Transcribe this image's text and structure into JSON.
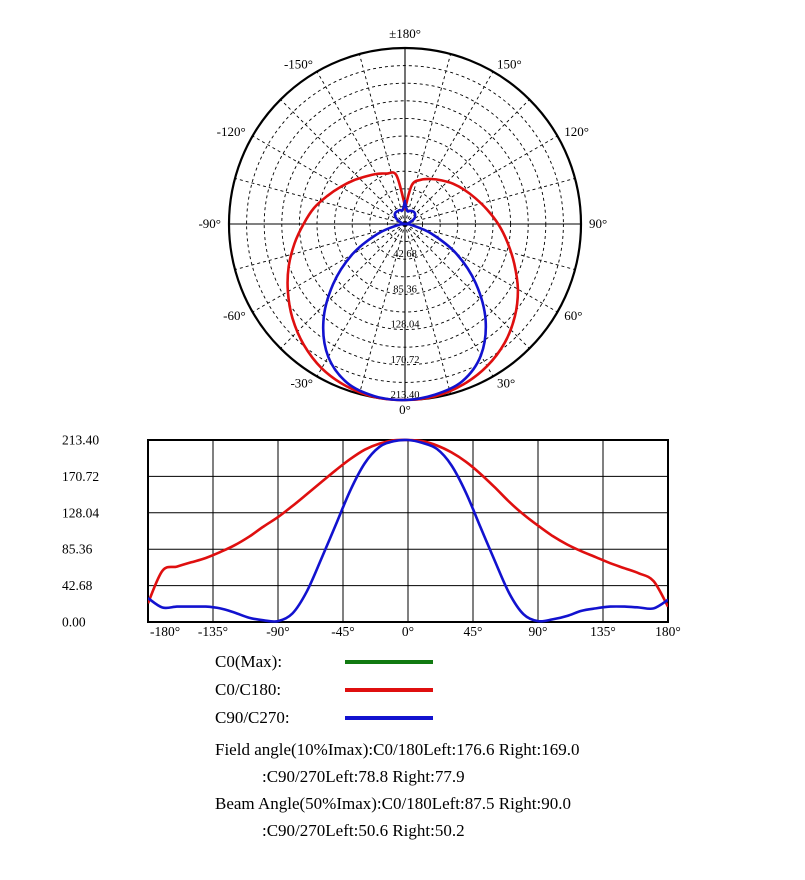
{
  "page": {
    "background": "#ffffff"
  },
  "chart_data": [
    {
      "type": "polar",
      "zero_angle_position": "bottom",
      "rmax": 213.4,
      "grid_rings": 10,
      "radial_grid_step_deg": 15,
      "angle_ticks": [
        {
          "deg": 180,
          "label": "±180°"
        },
        {
          "deg": -150,
          "label": "-150°"
        },
        {
          "deg": 150,
          "label": "150°"
        },
        {
          "deg": -120,
          "label": "-120°"
        },
        {
          "deg": 120,
          "label": "120°"
        },
        {
          "deg": -90,
          "label": "-90°"
        },
        {
          "deg": 90,
          "label": "90°"
        },
        {
          "deg": -60,
          "label": "-60°"
        },
        {
          "deg": 60,
          "label": "60°"
        },
        {
          "deg": -30,
          "label": "-30°"
        },
        {
          "deg": 30,
          "label": "30°"
        },
        {
          "deg": 0,
          "label": "0°"
        }
      ],
      "radial_ticks": [
        {
          "value": 42.68,
          "label": "42.68"
        },
        {
          "value": 85.36,
          "label": "85.36"
        },
        {
          "value": 128.04,
          "label": "128.04"
        },
        {
          "value": 170.72,
          "label": "170.72"
        },
        {
          "value": 213.4,
          "label": "213.40"
        }
      ],
      "angles": [
        -180,
        -170,
        -160,
        -150,
        -140,
        -130,
        -120,
        -110,
        -100,
        -90,
        -80,
        -70,
        -60,
        -50,
        -40,
        -30,
        -20,
        -10,
        0,
        10,
        20,
        30,
        40,
        50,
        60,
        70,
        80,
        90,
        100,
        110,
        120,
        130,
        140,
        150,
        160,
        170,
        180
      ],
      "series": [
        {
          "name": "C0/C180",
          "color": "#df0f0f",
          "values": [
            22,
            60,
            65,
            70,
            75,
            82,
            90,
            100,
            112,
            123,
            136,
            150,
            164,
            178,
            191,
            202,
            209,
            213,
            213.4,
            212,
            207,
            199,
            188,
            174,
            158,
            141,
            126,
            113,
            101,
            91,
            83,
            76,
            69,
            63,
            57,
            48,
            18
          ]
        },
        {
          "name": "C90/C270",
          "color": "#1212cf",
          "values": [
            28,
            17,
            18,
            18,
            18,
            16,
            11,
            5,
            2,
            1,
            10,
            36,
            74,
            114,
            154,
            186,
            205,
            212,
            213.4,
            210,
            203,
            184,
            152,
            112,
            72,
            34,
            9,
            1,
            3,
            7,
            13,
            16,
            18,
            18,
            17,
            16,
            26
          ]
        }
      ]
    },
    {
      "type": "line",
      "xlim": [
        -180,
        180
      ],
      "ylim": [
        0,
        213.4
      ],
      "x_tick_labels": [
        "-180°",
        "-135°",
        "-90°",
        "-45°",
        "0°",
        "45°",
        "90°",
        "135°",
        "180°"
      ],
      "y_tick_labels": [
        "213.40",
        "170.72",
        "128.04",
        "85.36",
        "42.68",
        "0.00"
      ],
      "grid": true,
      "angles": [
        -180,
        -170,
        -160,
        -150,
        -140,
        -130,
        -120,
        -110,
        -100,
        -90,
        -80,
        -70,
        -60,
        -50,
        -40,
        -30,
        -20,
        -10,
        0,
        10,
        20,
        30,
        40,
        50,
        60,
        70,
        80,
        90,
        100,
        110,
        120,
        130,
        140,
        150,
        160,
        170,
        180
      ],
      "series": [
        {
          "name": "C0/C180",
          "color": "#df0f0f",
          "values": [
            22,
            60,
            65,
            70,
            75,
            82,
            90,
            100,
            112,
            123,
            136,
            150,
            164,
            178,
            191,
            202,
            209,
            213,
            213.4,
            212,
            207,
            199,
            188,
            174,
            158,
            141,
            126,
            113,
            101,
            91,
            83,
            76,
            69,
            63,
            57,
            48,
            18
          ]
        },
        {
          "name": "C90/C270",
          "color": "#1212cf",
          "values": [
            28,
            17,
            18,
            18,
            18,
            16,
            11,
            5,
            2,
            1,
            10,
            36,
            74,
            114,
            154,
            186,
            205,
            212,
            213.4,
            210,
            203,
            184,
            152,
            112,
            72,
            34,
            9,
            1,
            3,
            7,
            13,
            16,
            18,
            18,
            17,
            16,
            26
          ]
        }
      ]
    }
  ],
  "legend": {
    "items": [
      {
        "label": "C0(Max):",
        "color": "#117a11"
      },
      {
        "label": "C0/C180:",
        "color": "#df0f0f"
      },
      {
        "label": "C90/C270:",
        "color": "#1212cf"
      }
    ]
  },
  "annotations": {
    "lines": [
      {
        "text": "Field angle(10%Imax):C0/180Left:176.6 Right:169.0",
        "indent": false
      },
      {
        "text": ":C90/270Left:78.8 Right:77.9",
        "indent": true
      },
      {
        "text": "Beam Angle(50%Imax):C0/180Left:87.5 Right:90.0",
        "indent": false
      },
      {
        "text": ":C90/270Left:50.6 Right:50.2",
        "indent": true
      }
    ]
  }
}
